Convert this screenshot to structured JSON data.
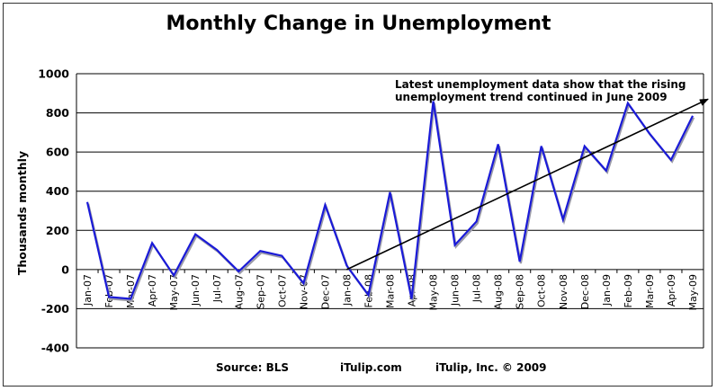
{
  "chart_data": {
    "type": "line",
    "title": "Monthly Change in Unemployment",
    "ylabel": "Thousands monthly",
    "xlabel": "",
    "ylim": [
      -400,
      1000
    ],
    "yticks": [
      "1000",
      "800",
      "600",
      "400",
      "200",
      "0",
      "-200",
      "-400"
    ],
    "categories": [
      "Jan-07",
      "Feb-07",
      "Mar-07",
      "Apr-07",
      "May-07",
      "Jun-07",
      "Jul-07",
      "Aug-07",
      "Sep-07",
      "Oct-07",
      "Nov-07",
      "Dec-07",
      "Jan-08",
      "Feb-08",
      "Mar-08",
      "Apr-08",
      "May-08",
      "Jun-08",
      "Jul-08",
      "Aug-08",
      "Sep-08",
      "Oct-08",
      "Nov-08",
      "Dec-08",
      "Jan-09",
      "Feb-09",
      "Mar-09",
      "Apr-09",
      "May-09"
    ],
    "series": [
      {
        "values": [
          345,
          -140,
          -150,
          135,
          -30,
          180,
          100,
          -10,
          95,
          70,
          -70,
          330,
          20,
          -130,
          395,
          -150,
          860,
          125,
          245,
          640,
          40,
          630,
          255,
          630,
          505,
          850,
          695,
          560,
          785
        ]
      }
    ],
    "trend_arrow": {
      "from": [
        12,
        0
      ],
      "to": [
        29,
        870
      ]
    },
    "annotation": [
      "Latest unemployment data show that the rising",
      "unemployment trend continued in June 2009"
    ],
    "grid": true,
    "colors": {
      "line": "#1a1ad8",
      "shadow": "#9a9aa8",
      "arrow": "#000000"
    }
  },
  "footer": {
    "source": "Source: BLS",
    "site": "iTulip.com",
    "copyright": "iTulip, Inc. © 2009"
  }
}
